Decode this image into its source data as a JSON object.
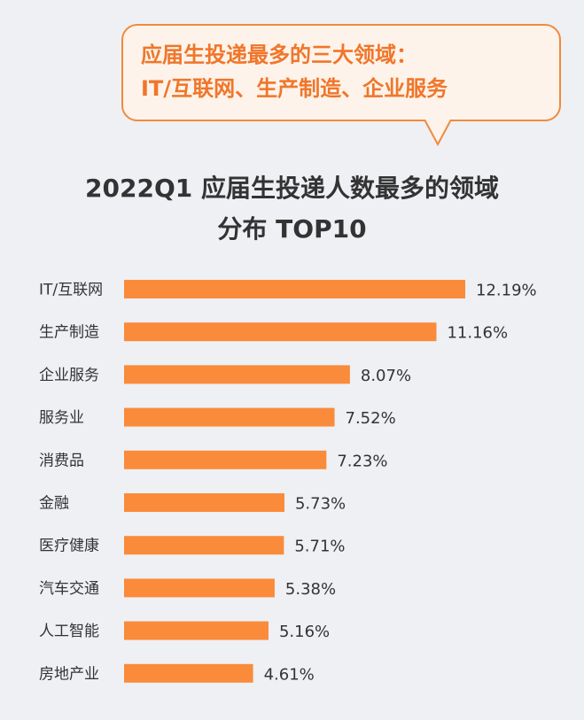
{
  "callout": {
    "line1": "应届生投递最多的三大领域：",
    "line2": "IT/互联网、生产制造、企业服务"
  },
  "colors": {
    "bar": "#fa8b3a",
    "accent": "#f0762a",
    "background": "#eef0f4"
  },
  "chart_data": {
    "type": "bar",
    "orientation": "horizontal",
    "title_line1": "2022Q1  应届生投递人数最多的领域",
    "title_line2": "分布 TOP10",
    "categories": [
      "IT/互联网",
      "生产制造",
      "企业服务",
      "服务业",
      "消费品",
      "金融",
      "医疗健康",
      "汽车交通",
      "人工智能",
      "房地产业"
    ],
    "values": [
      12.19,
      11.16,
      8.07,
      7.52,
      7.23,
      5.73,
      5.71,
      5.38,
      5.16,
      4.61
    ],
    "value_labels": [
      "12.19%",
      "11.16%",
      "8.07%",
      "7.52%",
      "7.23%",
      "5.73%",
      "5.71%",
      "5.38%",
      "5.16%",
      "4.61%"
    ],
    "unit": "%",
    "grid": false,
    "legend": "none"
  }
}
